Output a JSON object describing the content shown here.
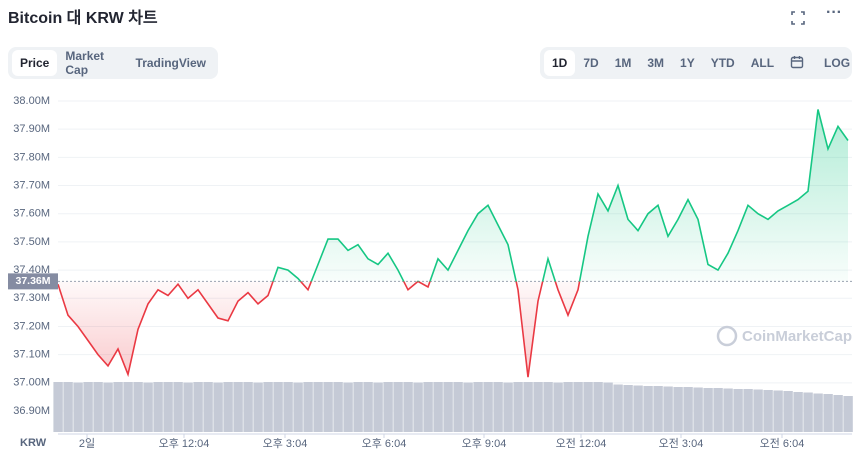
{
  "header": {
    "title": "Bitcoin 대 KRW 차트"
  },
  "tabs": [
    "Price",
    "Market Cap",
    "TradingView"
  ],
  "ranges": [
    "1D",
    "7D",
    "1M",
    "3M",
    "1Y",
    "YTD",
    "ALL"
  ],
  "log_button": "LOG",
  "chart_data": {
    "type": "line",
    "currency": "KRW",
    "watermark": "CoinMarketCap",
    "ylim": [
      36860000,
      38040000
    ],
    "yticks": [
      {
        "value": 38000000,
        "label": "38.00M"
      },
      {
        "value": 37900000,
        "label": "37.90M"
      },
      {
        "value": 37800000,
        "label": "37.80M"
      },
      {
        "value": 37700000,
        "label": "37.70M"
      },
      {
        "value": 37600000,
        "label": "37.60M"
      },
      {
        "value": 37500000,
        "label": "37.50M"
      },
      {
        "value": 37400000,
        "label": "37.40M"
      },
      {
        "value": 37300000,
        "label": "37.30M"
      },
      {
        "value": 37200000,
        "label": "37.20M"
      },
      {
        "value": 37100000,
        "label": "37.10M"
      },
      {
        "value": 37000000,
        "label": "37.00M"
      },
      {
        "value": 36900000,
        "label": "36.90M"
      }
    ],
    "baseline": {
      "value": 37360000,
      "label": "37.36M"
    },
    "xlim": [
      0,
      79.4
    ],
    "xticks": [
      {
        "value": 2.9,
        "label": "2일"
      },
      {
        "value": 12.6,
        "label": "오후 12:04"
      },
      {
        "value": 22.7,
        "label": "오후 3:04"
      },
      {
        "value": 32.6,
        "label": "오후 6:04"
      },
      {
        "value": 42.6,
        "label": "오후 9:04"
      },
      {
        "value": 52.3,
        "label": "오전 12:04"
      },
      {
        "value": 62.3,
        "label": "오전 3:04"
      },
      {
        "value": 72.4,
        "label": "오전 6:04"
      }
    ],
    "grid": true,
    "up_color": "#16c784",
    "down_color": "#ea3943",
    "values": [
      37350000,
      37240000,
      37200000,
      37150000,
      37100000,
      37060000,
      37120000,
      37030000,
      37190000,
      37280000,
      37330000,
      37310000,
      37350000,
      37300000,
      37330000,
      37280000,
      37230000,
      37220000,
      37290000,
      37320000,
      37280000,
      37310000,
      37410000,
      37400000,
      37370000,
      37330000,
      37420000,
      37510000,
      37510000,
      37470000,
      37490000,
      37440000,
      37420000,
      37460000,
      37400000,
      37330000,
      37360000,
      37340000,
      37440000,
      37400000,
      37470000,
      37540000,
      37600000,
      37630000,
      37560000,
      37490000,
      37330000,
      37020000,
      37290000,
      37440000,
      37330000,
      37240000,
      37330000,
      37520000,
      37670000,
      37610000,
      37700000,
      37580000,
      37540000,
      37600000,
      37630000,
      37520000,
      37580000,
      37650000,
      37580000,
      37420000,
      37400000,
      37460000,
      37540000,
      37630000,
      37600000,
      37580000,
      37610000,
      37630000,
      37650000,
      37680000,
      37970000,
      37830000,
      37910000,
      37860000
    ],
    "volume": {
      "color": "#c5cad6",
      "ylim": [
        0,
        100
      ],
      "values": [
        100,
        100,
        99,
        100,
        100,
        99,
        100,
        100,
        100,
        99,
        100,
        100,
        100,
        99,
        100,
        100,
        99,
        100,
        100,
        100,
        99,
        100,
        100,
        100,
        99,
        100,
        100,
        100,
        100,
        99,
        100,
        100,
        99,
        100,
        100,
        100,
        99,
        100,
        100,
        100,
        100,
        99,
        100,
        100,
        100,
        99,
        100,
        100,
        100,
        100,
        99,
        100,
        100,
        100,
        100,
        99,
        95,
        94,
        93,
        92,
        92,
        91,
        90,
        90,
        89,
        88,
        88,
        87,
        86,
        86,
        85,
        84,
        83,
        82,
        80,
        79,
        77,
        76,
        74,
        72
      ]
    }
  }
}
